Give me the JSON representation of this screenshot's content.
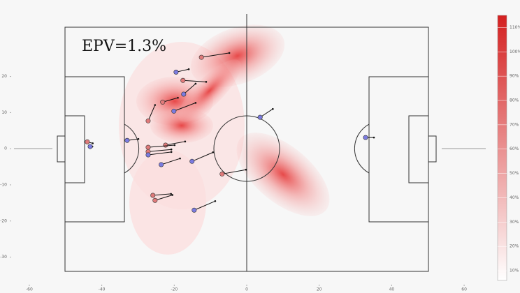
{
  "chart_data": {
    "type": "scatter",
    "annotation": "EPV=1.3%",
    "xlim": [
      -65,
      65
    ],
    "ylim": [
      -38,
      40
    ],
    "xticks": [
      -60,
      -40,
      -20,
      0,
      20,
      40,
      60
    ],
    "yticks": [
      -30,
      -20,
      -10,
      0,
      10,
      20
    ],
    "series": [
      {
        "color": "#e07a7a",
        "x": [
          -44,
          -12.5,
          -17.6,
          -23.2,
          -27.2,
          -22.4,
          -27.2,
          -27.2,
          -25.9,
          -25.3,
          -6.8
        ],
        "y": [
          1.9,
          25.3,
          18.9,
          12.9,
          7.7,
          1,
          0.4,
          -0.8,
          -12.9,
          -14.3,
          -7
        ],
        "vx": [
          1.5,
          7.7,
          6.4,
          4.2,
          1.9,
          5.4,
          7.3,
          6.4,
          5,
          4.8,
          6.6
        ],
        "vy": [
          -0.4,
          1.2,
          -0.4,
          1.2,
          4.4,
          1,
          0.6,
          0.6,
          0.4,
          1.5,
          1.2
        ]
      },
      {
        "color": "#7b7be0",
        "x": [
          -43.2,
          -33,
          -19.5,
          -17.4,
          -20.1,
          -27.2,
          -23.6,
          -15.1,
          3.7,
          -14.5,
          32.8
        ],
        "y": [
          0.6,
          2.3,
          21.2,
          15.1,
          10.4,
          -1.7,
          -4.4,
          -3.5,
          8.7,
          -17,
          3.1
        ],
        "vx": [
          0.6,
          3.1,
          3.5,
          3.3,
          6,
          6.4,
          5.2,
          5.8,
          3.5,
          5.8,
          2.3
        ],
        "vy": [
          0,
          0.4,
          0.8,
          2.9,
          2.3,
          0.8,
          1.7,
          2.5,
          2.3,
          2.5,
          0
        ]
      }
    ],
    "colorbar": {
      "lim": [
        6,
        115
      ],
      "ticks": [
        {
          "value": 10,
          "label": "10%"
        },
        {
          "value": 20,
          "label": "20%"
        },
        {
          "value": 30,
          "label": "30%"
        },
        {
          "value": 40,
          "label": "40%"
        },
        {
          "value": 50,
          "label": "50%"
        },
        {
          "value": 60,
          "label": "60%"
        },
        {
          "value": 70,
          "label": "70%"
        },
        {
          "value": 80,
          "label": "80%"
        },
        {
          "value": 90,
          "label": "90%"
        },
        {
          "value": 100,
          "label": "100%"
        },
        {
          "value": 110,
          "label": "110%"
        }
      ]
    }
  }
}
